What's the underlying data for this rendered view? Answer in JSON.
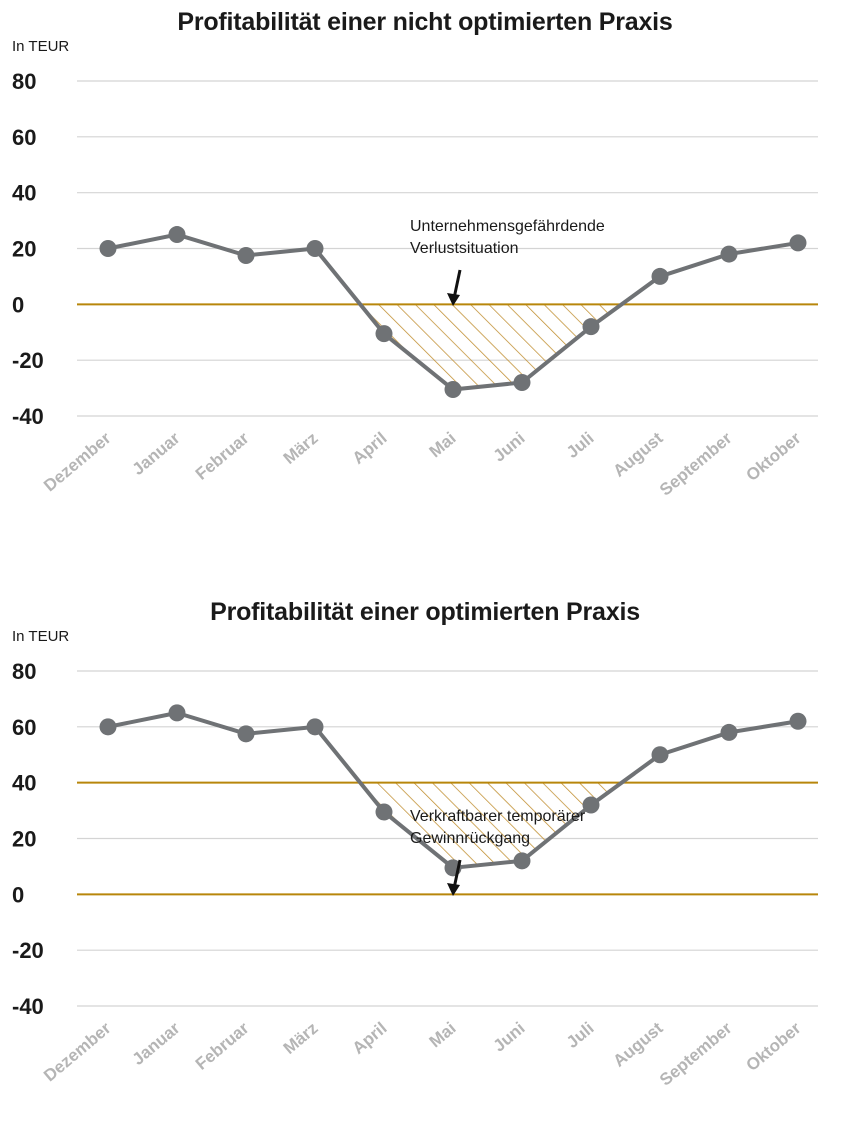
{
  "chart_data": [
    {
      "type": "line",
      "title": "Profitabilität einer nicht optimierten Praxis",
      "ylabel": "In TEUR",
      "categories": [
        "Dezember",
        "Januar",
        "Februar",
        "März",
        "April",
        "Mai",
        "Juni",
        "Juli",
        "August",
        "September",
        "Oktober"
      ],
      "series": [
        {
          "values": [
            20,
            25,
            17.5,
            20,
            -10.5,
            -30.5,
            -28,
            -8,
            10,
            18,
            22
          ]
        }
      ],
      "ylim": [
        -40,
        80
      ],
      "yticks": [
        "80",
        "60",
        "40",
        "20",
        "0",
        "-20",
        "-40"
      ],
      "yticks_values": [
        80,
        60,
        40,
        20,
        0,
        -20,
        -40
      ],
      "reference_value": 0,
      "annotation": {
        "lines": [
          "Unternehmensgefährdende",
          "Verlustsituation"
        ],
        "arrow_target_x": 5.0
      },
      "grid": true,
      "colors": {
        "line": "#6f7275",
        "reference": "#b8860b",
        "hatch": "#c08d2e",
        "grid": "#d4d4d4"
      }
    },
    {
      "type": "line",
      "title": "Profitabilität einer optimierten Praxis",
      "ylabel": "In TEUR",
      "categories": [
        "Dezember",
        "Januar",
        "Februar",
        "März",
        "April",
        "Mai",
        "Juni",
        "Juli",
        "August",
        "September",
        "Oktober"
      ],
      "series": [
        {
          "values": [
            60,
            65,
            57.5,
            60,
            29.5,
            9.5,
            12,
            32,
            50,
            58,
            62
          ]
        }
      ],
      "ylim": [
        -40,
        80
      ],
      "yticks": [
        "80",
        "60",
        "40",
        "20",
        "0",
        "-20",
        "-40"
      ],
      "yticks_values": [
        80,
        60,
        40,
        20,
        0,
        -20,
        -40
      ],
      "reference_value": 40,
      "zero_line": true,
      "annotation": {
        "lines": [
          "Verkraftbarer temporärer",
          "Gewinnrückgang"
        ],
        "arrow_target_x": 5.0
      },
      "grid": true,
      "colors": {
        "line": "#6f7275",
        "reference": "#b8860b",
        "hatch": "#c08d2e",
        "grid": "#d4d4d4"
      }
    }
  ]
}
